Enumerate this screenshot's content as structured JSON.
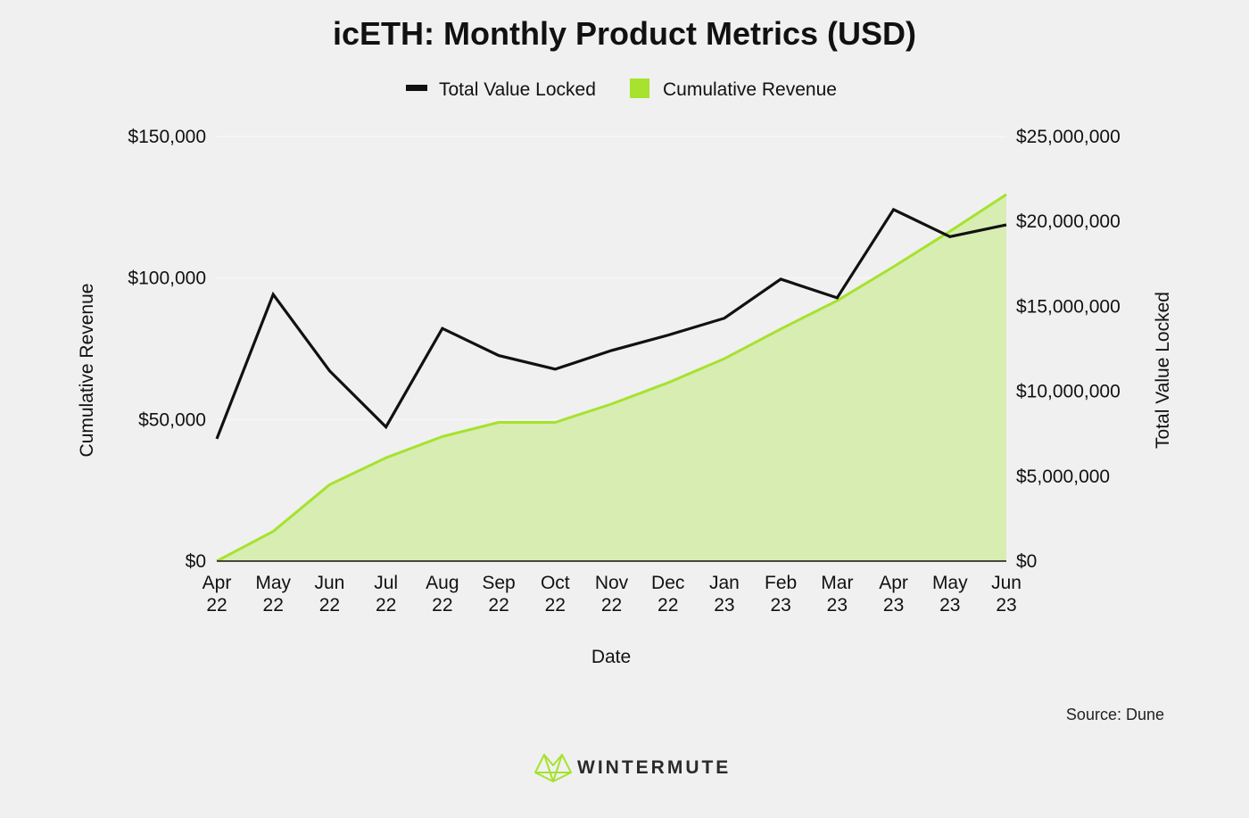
{
  "chart_data": {
    "type": "line",
    "title": "icETH: Monthly Product Metrics (USD)",
    "xlabel": "Date",
    "ylabel_left": "Cumulative Revenue",
    "ylabel_right": "Total Value Locked",
    "legend_position": "top-center",
    "grid": true,
    "categories": [
      [
        "Apr",
        "22"
      ],
      [
        "May",
        "22"
      ],
      [
        "Jun",
        "22"
      ],
      [
        "Jul",
        "22"
      ],
      [
        "Aug",
        "22"
      ],
      [
        "Sep",
        "22"
      ],
      [
        "Oct",
        "22"
      ],
      [
        "Nov",
        "22"
      ],
      [
        "Dec",
        "22"
      ],
      [
        "Jan",
        "23"
      ],
      [
        "Feb",
        "23"
      ],
      [
        "Mar",
        "23"
      ],
      [
        "Apr",
        "23"
      ],
      [
        "May",
        "23"
      ],
      [
        "Jun",
        "23"
      ]
    ],
    "left_axis": {
      "ylim": [
        0,
        150000
      ],
      "ticks": [
        0,
        50000,
        100000,
        150000
      ],
      "tick_labels": [
        "$0",
        "$50,000",
        "$100,000",
        "$150,000"
      ]
    },
    "right_axis": {
      "ylim": [
        0,
        25000000
      ],
      "ticks": [
        0,
        5000000,
        10000000,
        15000000,
        20000000,
        25000000
      ],
      "tick_labels": [
        "$0",
        "$5,000,000",
        "$10,000,000",
        "$15,000,000",
        "$20,000,000",
        "$25,000,000"
      ]
    },
    "series": [
      {
        "name": "Total Value Locked",
        "type": "line",
        "axis": "right",
        "color": "#111111",
        "values": [
          7200000,
          15700000,
          11200000,
          7900000,
          13700000,
          12100000,
          11300000,
          12400000,
          13300000,
          14300000,
          16600000,
          15500000,
          20700000,
          19100000,
          19800000
        ]
      },
      {
        "name": "Cumulative Revenue",
        "type": "area",
        "axis": "left",
        "color": "#a6e22e",
        "fill": "#d8edb2",
        "values": [
          0,
          10500,
          27000,
          36500,
          44000,
          49000,
          49000,
          55500,
          63000,
          71500,
          82000,
          92000,
          104000,
          116500,
          129500
        ]
      }
    ]
  },
  "footer": {
    "source": "Source: Dune",
    "brand": "WINTERMUTE",
    "brand_logo_icon": "wintermute-logo-icon"
  }
}
